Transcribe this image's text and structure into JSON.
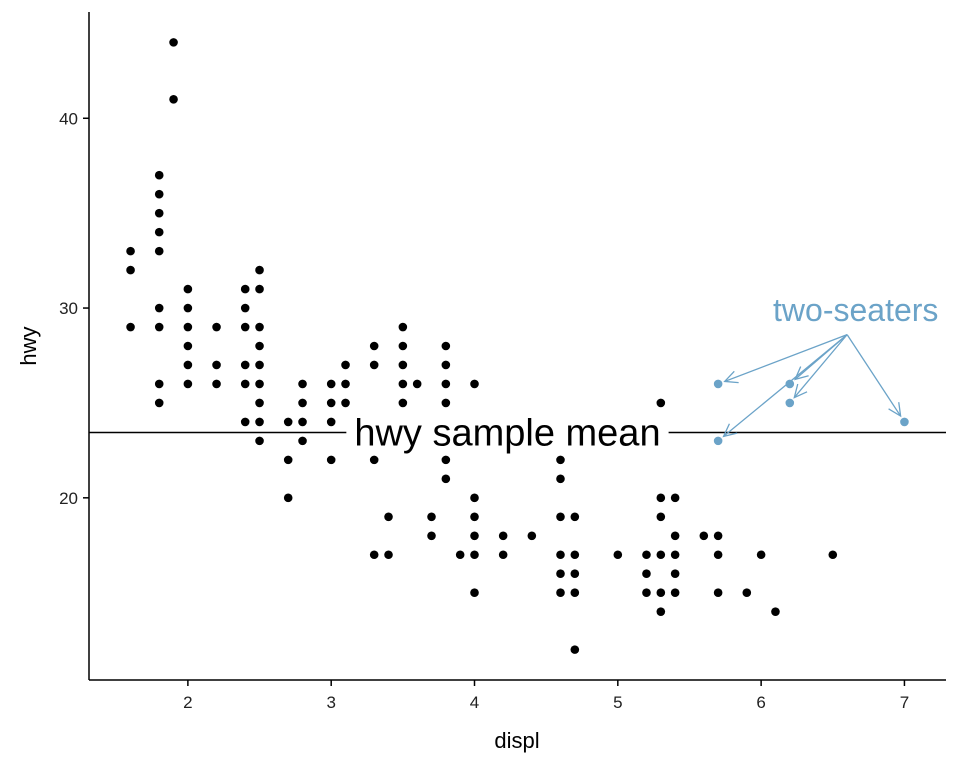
{
  "chart_data": {
    "type": "scatter",
    "xlabel": "displ",
    "ylabel": "hwy",
    "xlim": [
      1.31,
      7.29
    ],
    "ylim": [
      10.4,
      45.6
    ],
    "xticks": [
      2,
      3,
      4,
      5,
      6,
      7
    ],
    "yticks": [
      20,
      30,
      40
    ],
    "grid": false,
    "point_color": "#000000",
    "highlight_color": "#6BA3C8",
    "series": [
      {
        "points": [
          [
            1.6,
            33
          ],
          [
            1.6,
            32
          ],
          [
            1.6,
            29
          ],
          [
            1.8,
            37
          ],
          [
            1.8,
            36
          ],
          [
            1.8,
            35
          ],
          [
            1.8,
            34
          ],
          [
            1.8,
            33
          ],
          [
            1.8,
            30
          ],
          [
            1.8,
            29
          ],
          [
            1.8,
            26
          ],
          [
            1.8,
            25
          ],
          [
            1.9,
            44
          ],
          [
            1.9,
            41
          ],
          [
            2.0,
            31
          ],
          [
            2.0,
            30
          ],
          [
            2.0,
            29
          ],
          [
            2.0,
            28
          ],
          [
            2.0,
            27
          ],
          [
            2.0,
            26
          ],
          [
            2.2,
            29
          ],
          [
            2.2,
            27
          ],
          [
            2.2,
            26
          ],
          [
            2.4,
            31
          ],
          [
            2.4,
            30
          ],
          [
            2.4,
            29
          ],
          [
            2.4,
            27
          ],
          [
            2.4,
            26
          ],
          [
            2.4,
            24
          ],
          [
            2.5,
            32
          ],
          [
            2.5,
            31
          ],
          [
            2.5,
            29
          ],
          [
            2.5,
            28
          ],
          [
            2.5,
            27
          ],
          [
            2.5,
            26
          ],
          [
            2.5,
            25
          ],
          [
            2.5,
            24
          ],
          [
            2.5,
            23
          ],
          [
            2.7,
            24
          ],
          [
            2.7,
            22
          ],
          [
            2.7,
            20
          ],
          [
            2.8,
            26
          ],
          [
            2.8,
            25
          ],
          [
            2.8,
            24
          ],
          [
            2.8,
            23
          ],
          [
            3.0,
            26
          ],
          [
            3.0,
            25
          ],
          [
            3.0,
            24
          ],
          [
            3.0,
            22
          ],
          [
            3.1,
            27
          ],
          [
            3.1,
            26
          ],
          [
            3.1,
            25
          ],
          [
            3.3,
            28
          ],
          [
            3.3,
            27
          ],
          [
            3.3,
            24
          ],
          [
            3.3,
            22
          ],
          [
            3.3,
            17
          ],
          [
            3.4,
            19
          ],
          [
            3.4,
            17
          ],
          [
            3.5,
            29
          ],
          [
            3.5,
            28
          ],
          [
            3.5,
            27
          ],
          [
            3.5,
            26
          ],
          [
            3.5,
            25
          ],
          [
            3.6,
            26
          ],
          [
            3.7,
            19
          ],
          [
            3.7,
            18
          ],
          [
            3.8,
            28
          ],
          [
            3.8,
            27
          ],
          [
            3.8,
            26
          ],
          [
            3.8,
            25
          ],
          [
            3.8,
            23
          ],
          [
            3.8,
            22
          ],
          [
            3.8,
            21
          ],
          [
            3.9,
            17
          ],
          [
            4.0,
            26
          ],
          [
            4.0,
            24
          ],
          [
            4.0,
            23
          ],
          [
            4.0,
            20
          ],
          [
            4.0,
            19
          ],
          [
            4.0,
            18
          ],
          [
            4.0,
            17
          ],
          [
            4.0,
            15
          ],
          [
            4.2,
            23
          ],
          [
            4.2,
            18
          ],
          [
            4.2,
            17
          ],
          [
            4.4,
            18
          ],
          [
            4.6,
            22
          ],
          [
            4.6,
            21
          ],
          [
            4.6,
            19
          ],
          [
            4.6,
            17
          ],
          [
            4.6,
            16
          ],
          [
            4.6,
            15
          ],
          [
            4.7,
            19
          ],
          [
            4.7,
            17
          ],
          [
            4.7,
            16
          ],
          [
            4.7,
            15
          ],
          [
            4.7,
            12
          ],
          [
            5.0,
            17
          ],
          [
            5.2,
            17
          ],
          [
            5.2,
            16
          ],
          [
            5.2,
            15
          ],
          [
            5.3,
            25
          ],
          [
            5.3,
            20
          ],
          [
            5.3,
            19
          ],
          [
            5.3,
            17
          ],
          [
            5.3,
            15
          ],
          [
            5.3,
            14
          ],
          [
            5.4,
            20
          ],
          [
            5.4,
            18
          ],
          [
            5.4,
            17
          ],
          [
            5.4,
            16
          ],
          [
            5.4,
            15
          ],
          [
            5.6,
            18
          ],
          [
            5.7,
            18
          ],
          [
            5.7,
            17
          ],
          [
            5.7,
            15
          ],
          [
            5.9,
            15
          ],
          [
            6.0,
            17
          ],
          [
            6.1,
            14
          ],
          [
            6.5,
            17
          ]
        ]
      },
      {
        "name": "two-seaters",
        "points": [
          [
            5.7,
            26
          ],
          [
            5.7,
            23
          ],
          [
            6.2,
            26
          ],
          [
            6.2,
            25
          ],
          [
            7.0,
            24
          ]
        ]
      }
    ],
    "hline": {
      "y": 23.44,
      "label": "hwy sample mean",
      "label_x": 4.23
    },
    "annotation": {
      "label": "two-seaters",
      "label_x": 6.66,
      "label_y": 29.9,
      "arrow_origin": [
        6.6,
        28.6
      ],
      "color": "#6BA3C8"
    }
  }
}
